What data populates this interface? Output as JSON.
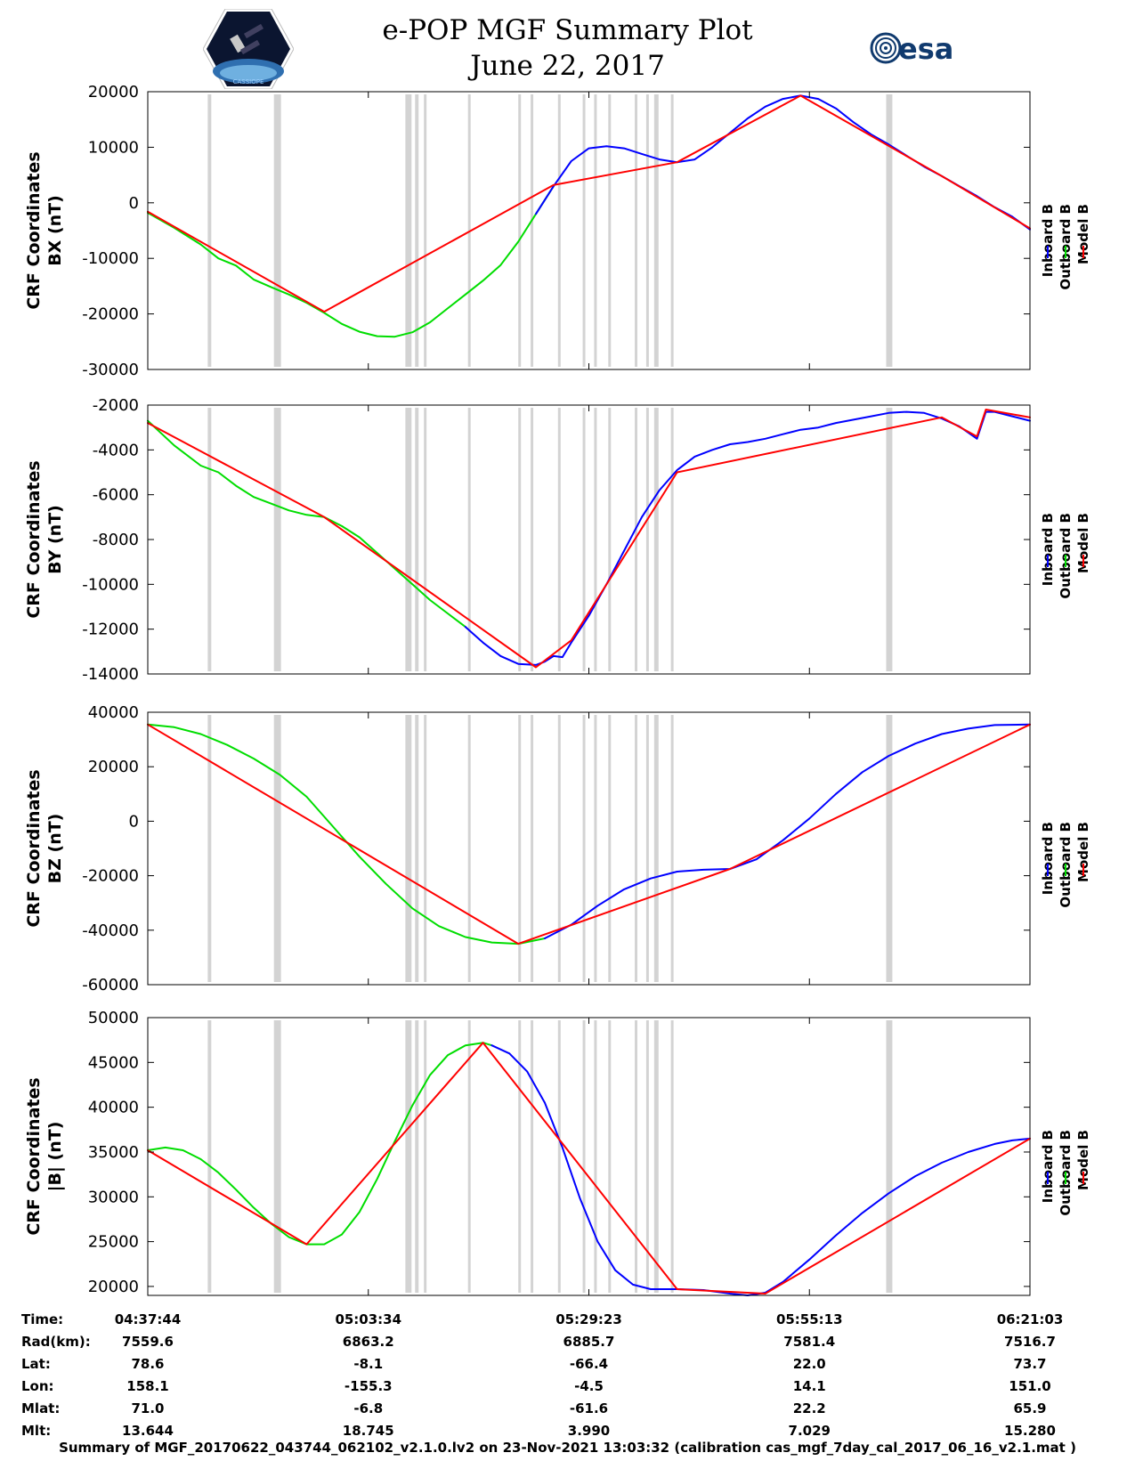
{
  "header": {
    "title_line1": "e-POP MGF Summary Plot",
    "title_line2": "June 22, 2017",
    "logo_left_text": "CASSIOPE",
    "logo_right_text": "esa"
  },
  "colors": {
    "inboard": "#0000ff",
    "outboard": "#00dd00",
    "model": "#ff0000",
    "gap": "#d3d3d3"
  },
  "legend": [
    "Inboard B",
    "Outboard B",
    "Model B"
  ],
  "chart_data": [
    {
      "type": "line",
      "panel": "bx",
      "ylabel": [
        "CRF Coordinates",
        "BX (nT)"
      ],
      "ylim": [
        -30000,
        20000
      ],
      "yticks": [
        20000,
        10000,
        0,
        -10000,
        -20000,
        -30000
      ],
      "xlim": [
        0,
        100
      ],
      "series": [
        {
          "name": "Outboard B",
          "color": "#00dd00",
          "x": [
            0,
            3,
            6,
            8,
            10,
            12,
            14,
            16,
            18,
            20,
            22,
            24,
            26,
            28,
            30,
            32,
            34,
            36,
            38,
            40,
            42,
            44,
            46
          ],
          "y": [
            -1800,
            -4500,
            -7500,
            -10000,
            -11300,
            -13800,
            -15200,
            -16500,
            -18000,
            -19800,
            -21800,
            -23200,
            -24000,
            -24100,
            -23300,
            -21500,
            -19000,
            -16500,
            -14000,
            -11200,
            -7000,
            -2000,
            3000
          ]
        },
        {
          "name": "Inboard B",
          "color": "#0000ff",
          "x": [
            44,
            46,
            48,
            50,
            52,
            54,
            56,
            58,
            60,
            62,
            64,
            66,
            68,
            70,
            72,
            74,
            76,
            78,
            80,
            82,
            84,
            86,
            88,
            90,
            92,
            94,
            96,
            98,
            100
          ],
          "y": [
            -2000,
            3000,
            7500,
            9800,
            10200,
            9800,
            8800,
            7800,
            7300,
            7800,
            10000,
            12600,
            15200,
            17300,
            18700,
            19300,
            18700,
            17000,
            14500,
            12300,
            10500,
            8500,
            6500,
            4800,
            3000,
            1200,
            -800,
            -2500,
            -4800
          ]
        },
        {
          "name": "Model B",
          "color": "#ff0000",
          "x": [
            0,
            20,
            46,
            60,
            74,
            90,
            100
          ],
          "y": [
            -1600,
            -19600,
            3200,
            7300,
            19300,
            4800,
            -4600
          ]
        }
      ]
    },
    {
      "type": "line",
      "panel": "by",
      "ylabel": [
        "CRF Coordinates",
        "BY (nT)"
      ],
      "ylim": [
        -14000,
        -2000
      ],
      "yticks": [
        -2000,
        -4000,
        -6000,
        -8000,
        -10000,
        -12000,
        -14000
      ],
      "xlim": [
        0,
        100
      ],
      "series": [
        {
          "name": "Outboard B",
          "color": "#00dd00",
          "x": [
            0,
            3,
            6,
            8,
            10,
            12,
            14,
            16,
            18,
            20,
            22,
            24,
            26,
            28,
            30,
            32,
            34,
            36
          ],
          "y": [
            -2700,
            -3800,
            -4700,
            -5000,
            -5600,
            -6100,
            -6400,
            -6700,
            -6900,
            -7000,
            -7400,
            -7900,
            -8600,
            -9300,
            -10000,
            -10700,
            -11300,
            -11900
          ]
        },
        {
          "name": "Inboard B",
          "color": "#0000ff",
          "x": [
            36,
            38,
            40,
            42,
            44,
            45,
            46,
            47,
            48,
            50,
            52,
            54,
            56,
            58,
            60,
            62,
            64,
            66,
            68,
            70,
            72,
            74,
            76,
            78,
            80,
            82,
            84,
            86,
            88,
            90,
            92,
            94,
            95,
            96,
            98,
            100
          ],
          "y": [
            -11900,
            -12600,
            -13200,
            -13550,
            -13600,
            -13450,
            -13200,
            -13250,
            -12600,
            -11400,
            -10000,
            -8500,
            -7000,
            -5800,
            -4900,
            -4300,
            -4000,
            -3750,
            -3650,
            -3500,
            -3300,
            -3100,
            -3000,
            -2800,
            -2650,
            -2500,
            -2350,
            -2300,
            -2350,
            -2600,
            -2950,
            -3500,
            -2300,
            -2300,
            -2500,
            -2700
          ]
        },
        {
          "name": "Model B",
          "color": "#ff0000",
          "x": [
            0,
            20,
            44,
            48,
            60,
            90,
            94,
            95,
            100
          ],
          "y": [
            -2800,
            -7000,
            -13700,
            -12500,
            -5000,
            -2550,
            -3400,
            -2200,
            -2550
          ]
        }
      ]
    },
    {
      "type": "line",
      "panel": "bz",
      "ylabel": [
        "CRF Coordinates",
        "BZ (nT)"
      ],
      "ylim": [
        -60000,
        40000
      ],
      "yticks": [
        40000,
        20000,
        0,
        -20000,
        -40000,
        -60000
      ],
      "xlim": [
        0,
        100
      ],
      "series": [
        {
          "name": "Outboard B",
          "color": "#00dd00",
          "x": [
            0,
            3,
            6,
            9,
            12,
            15,
            18,
            21,
            24,
            27,
            30,
            33,
            36,
            39,
            42,
            45
          ],
          "y": [
            35500,
            34500,
            32000,
            28000,
            23000,
            17000,
            9000,
            -2000,
            -13000,
            -23000,
            -32000,
            -38500,
            -42500,
            -44500,
            -45000,
            -43000
          ]
        },
        {
          "name": "Inboard B",
          "color": "#0000ff",
          "x": [
            45,
            48,
            51,
            54,
            57,
            60,
            63,
            66,
            69,
            72,
            75,
            78,
            81,
            84,
            87,
            90,
            93,
            96,
            100
          ],
          "y": [
            -43000,
            -38000,
            -31000,
            -25000,
            -21000,
            -18500,
            -17800,
            -17500,
            -14000,
            -7000,
            1000,
            10000,
            18000,
            24000,
            28500,
            32000,
            34000,
            35300,
            35500
          ]
        },
        {
          "name": "Model B",
          "color": "#ff0000",
          "x": [
            0,
            42,
            66,
            100
          ],
          "y": [
            35500,
            -45000,
            -17500,
            35500
          ]
        }
      ]
    },
    {
      "type": "line",
      "panel": "bmag",
      "ylabel": [
        "CRF Coordinates",
        "|B| (nT)"
      ],
      "ylim": [
        19000,
        50000
      ],
      "yticks": [
        50000,
        45000,
        40000,
        35000,
        30000,
        25000,
        20000
      ],
      "xlim": [
        0,
        100
      ],
      "series": [
        {
          "name": "Outboard B",
          "color": "#00dd00",
          "x": [
            0,
            2,
            4,
            6,
            8,
            10,
            12,
            14,
            16,
            18,
            20,
            22,
            24,
            26,
            28,
            30,
            32,
            34,
            36,
            38,
            39
          ],
          "y": [
            35200,
            35500,
            35200,
            34200,
            32700,
            30800,
            28800,
            27000,
            25500,
            24700,
            24700,
            25800,
            28300,
            32000,
            36200,
            40200,
            43600,
            45800,
            46900,
            47200,
            46900
          ]
        },
        {
          "name": "Inboard B",
          "color": "#0000ff",
          "x": [
            39,
            41,
            43,
            45,
            47,
            49,
            51,
            53,
            55,
            57,
            60,
            63,
            66,
            68,
            70,
            72,
            75,
            78,
            81,
            84,
            87,
            90,
            93,
            96,
            98,
            100
          ],
          "y": [
            46900,
            46000,
            44000,
            40500,
            35500,
            29800,
            25000,
            21800,
            20200,
            19700,
            19700,
            19600,
            19200,
            19000,
            19300,
            20500,
            23000,
            25700,
            28200,
            30400,
            32300,
            33800,
            35000,
            35900,
            36300,
            36500
          ]
        },
        {
          "name": "Model B",
          "color": "#ff0000",
          "x": [
            0,
            18,
            38,
            60,
            70,
            100
          ],
          "y": [
            35200,
            24700,
            47200,
            19700,
            19200,
            36500
          ]
        }
      ]
    }
  ],
  "gaps": [
    [
      6.8,
      7.2
    ],
    [
      14.3,
      15.1
    ],
    [
      29.2,
      29.9
    ],
    [
      30.3,
      30.7
    ],
    [
      31.3,
      31.6
    ],
    [
      36.3,
      36.6
    ],
    [
      42.0,
      42.3
    ],
    [
      43.4,
      43.7
    ],
    [
      46.5,
      46.8
    ],
    [
      49.3,
      49.6
    ],
    [
      50.6,
      50.9
    ],
    [
      52.2,
      52.5
    ],
    [
      55.2,
      55.5
    ],
    [
      56.5,
      56.8
    ],
    [
      57.4,
      57.9
    ],
    [
      59.3,
      59.6
    ],
    [
      83.7,
      84.4
    ]
  ],
  "xticks": [
    0,
    25,
    50,
    75,
    100
  ],
  "ephemeris": {
    "labels": [
      "Time:",
      "Rad(km):",
      "Lat:",
      "Lon:",
      "Mlat:",
      "Mlt:"
    ],
    "columns": [
      [
        "04:37:44",
        "7559.6",
        "78.6",
        "158.1",
        "71.0",
        "13.644"
      ],
      [
        "05:03:34",
        "6863.2",
        "-8.1",
        "-155.3",
        "-6.8",
        "18.745"
      ],
      [
        "05:29:23",
        "6885.7",
        "-66.4",
        "-4.5",
        "-61.6",
        "3.990"
      ],
      [
        "05:55:13",
        "7581.4",
        "22.0",
        "14.1",
        "22.2",
        "7.029"
      ],
      [
        "06:21:03",
        "7516.7",
        "73.7",
        "151.0",
        "65.9",
        "15.280"
      ]
    ]
  },
  "footer": "Summary of MGF_20170622_043744_062102_v2.1.0.lv2 on 23-Nov-2021 13:03:32 (calibration cas_mgf_7day_cal_2017_06_16_v2.1.mat )"
}
